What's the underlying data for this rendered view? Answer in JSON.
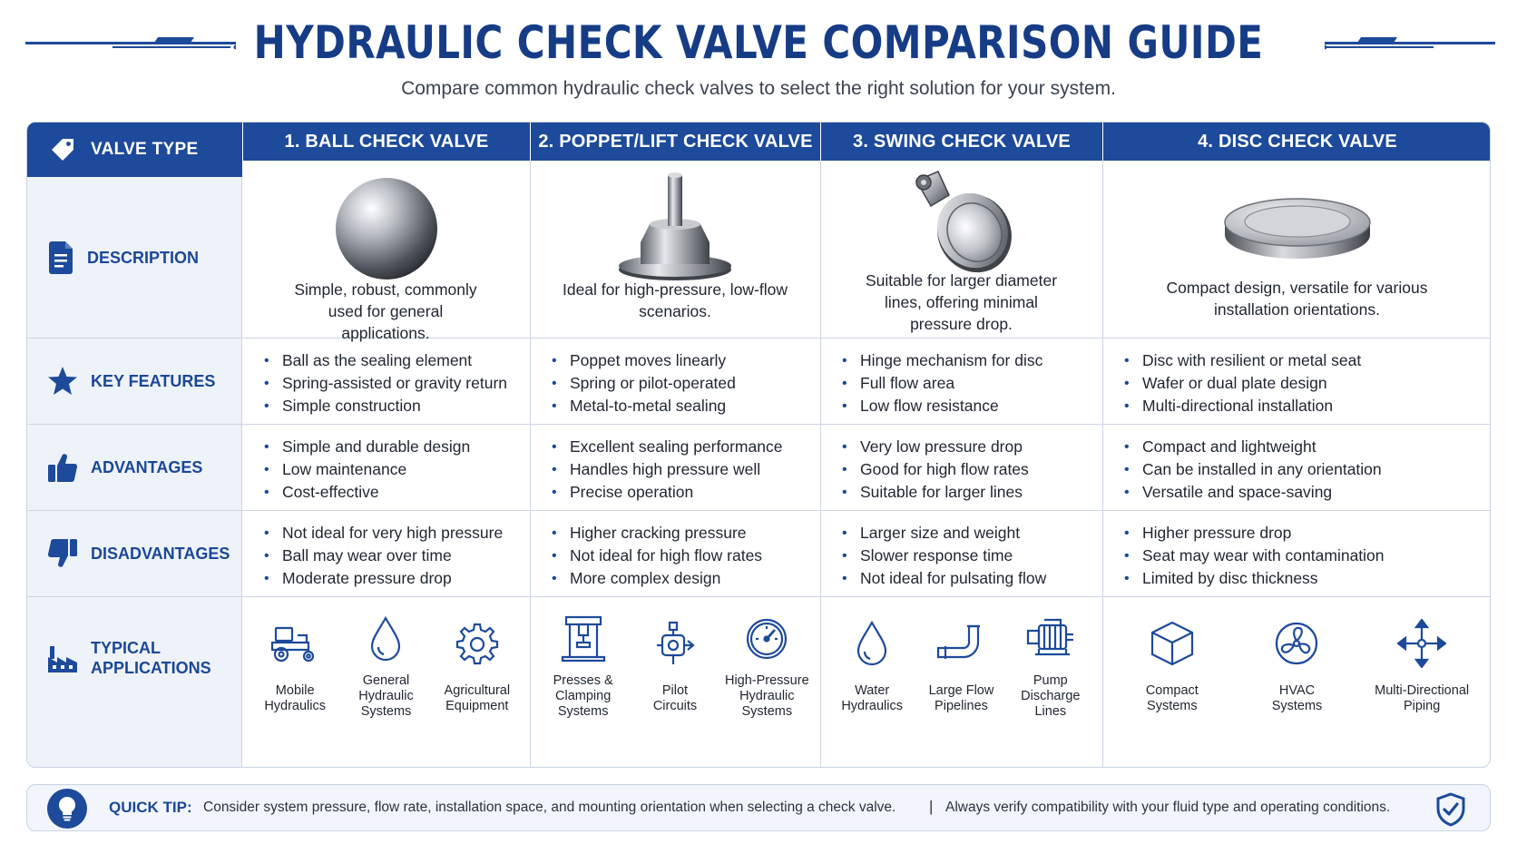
{
  "header": {
    "title": "HYDRAULIC CHECK VALVE COMPARISON GUIDE",
    "subtitle": "Compare common hydraulic check valves to select the right solution for your system."
  },
  "colors": {
    "primary": "#1d4a9a",
    "label_text": "#1c4797",
    "label_bg": "#eef3fa",
    "border": "#cdd6e4"
  },
  "row_labels": {
    "valve_type": "VALVE TYPE",
    "description": "DESCRIPTION",
    "key_features": "KEY FEATURES",
    "advantages": "ADVANTAGES",
    "disadvantages": "DISADVANTAGES",
    "typical_applications": "TYPICAL APPLICATIONS"
  },
  "row_icons": [
    "tag-icon",
    "document-icon",
    "star-icon",
    "thumbs-up-icon",
    "thumbs-down-icon",
    "factory-icon"
  ],
  "valves": [
    {
      "name": "1. BALL CHECK VALVE",
      "image": "ball-valve-illustration",
      "description": "Simple, robust, commonly used for general applications.",
      "key_features": [
        "Ball as the sealing element",
        "Spring-assisted or gravity return",
        "Simple construction"
      ],
      "advantages": [
        "Simple and durable design",
        "Low maintenance",
        "Cost-effective"
      ],
      "disadvantages": [
        "Not ideal for very high pressure",
        "Ball may wear over time",
        "Moderate pressure drop"
      ],
      "applications": [
        {
          "label": "Mobile\nHydraulics",
          "icon": "tractor-icon"
        },
        {
          "label": "General\nHydraulic\nSystems",
          "icon": "droplet-icon"
        },
        {
          "label": "Agricultural\nEquipment",
          "icon": "gear-icon"
        }
      ]
    },
    {
      "name": "2. POPPET/LIFT CHECK VALVE",
      "image": "poppet-valve-illustration",
      "description": "Ideal for high-pressure, low-flow scenarios.",
      "key_features": [
        "Poppet moves linearly",
        "Spring or pilot-operated",
        "Metal-to-metal sealing"
      ],
      "advantages": [
        "Excellent sealing performance",
        "Handles high pressure well",
        "Precise operation"
      ],
      "disadvantages": [
        "Higher cracking pressure",
        "Not ideal for high flow rates",
        "More complex design"
      ],
      "applications": [
        {
          "label": "Presses &\nClamping\nSystems",
          "icon": "press-icon"
        },
        {
          "label": "Pilot\nCircuits",
          "icon": "pilot-valve-icon"
        },
        {
          "label": "High-Pressure\nHydraulic\nSystems",
          "icon": "gauge-icon"
        }
      ]
    },
    {
      "name": "3. SWING CHECK VALVE",
      "image": "swing-valve-illustration",
      "description": "Suitable for larger diameter lines, offering minimal pressure drop.",
      "key_features": [
        "Hinge mechanism for disc",
        "Full flow area",
        "Low flow resistance"
      ],
      "advantages": [
        "Very low pressure drop",
        "Good for high flow rates",
        "Suitable for larger lines"
      ],
      "disadvantages": [
        "Larger size and weight",
        "Slower response time",
        "Not ideal for pulsating flow"
      ],
      "applications": [
        {
          "label": "Water\nHydraulics",
          "icon": "water-drop-icon"
        },
        {
          "label": "Large Flow\nPipelines",
          "icon": "pipeline-icon"
        },
        {
          "label": "Pump\nDischarge\nLines",
          "icon": "pump-icon"
        }
      ]
    },
    {
      "name": "4. DISC CHECK VALVE",
      "image": "disc-valve-illustration",
      "description": "Compact design, versatile for various installation orientations.",
      "key_features": [
        "Disc with resilient or metal seat",
        "Wafer or dual plate design",
        "Multi-directional installation"
      ],
      "advantages": [
        "Compact and lightweight",
        "Can be installed in any orientation",
        "Versatile and space-saving"
      ],
      "disadvantages": [
        "Higher pressure drop",
        "Seat may wear with contamination",
        "Limited by disc thickness"
      ],
      "applications": [
        {
          "label": "Compact\nSystems",
          "icon": "cube-icon"
        },
        {
          "label": "HVAC\nSystems",
          "icon": "fan-icon"
        },
        {
          "label": "Multi-Directional\nPiping",
          "icon": "arrows-icon"
        }
      ]
    }
  ],
  "tip": {
    "label": "QUICK TIP:",
    "text": "Consider system pressure, flow rate, installation space, and mounting orientation when selecting a check valve.",
    "separator": "|",
    "text2": "Always verify compatibility with your fluid type and operating conditions.",
    "icon": "lightbulb-icon",
    "end_icon": "shield-check-icon"
  }
}
